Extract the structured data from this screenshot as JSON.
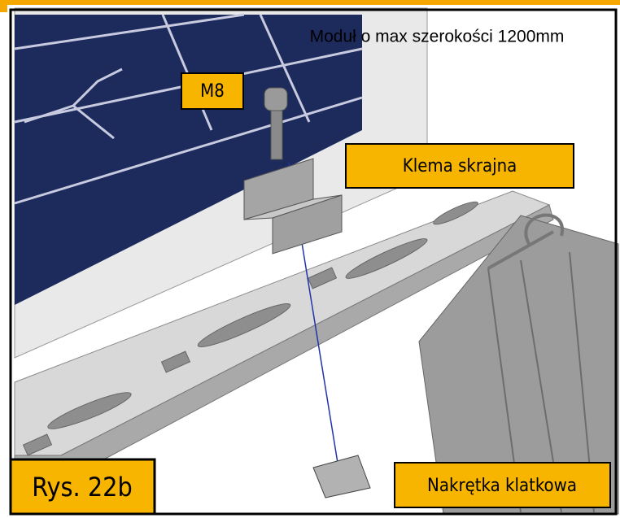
{
  "header": {
    "title": "Moduł o max szerokości 1200mm"
  },
  "labels": {
    "bolt": "M8",
    "clamp": "Klema skrajna",
    "nut": "Nakrętka klatkowa",
    "figure": "Rys. 22b"
  }
}
